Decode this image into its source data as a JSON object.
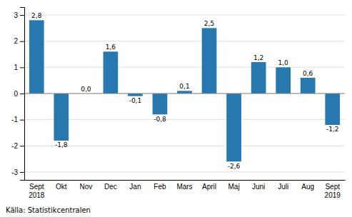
{
  "chart_data": {
    "type": "bar",
    "categories": [
      "Sept\n2018",
      "Okt",
      "Nov",
      "Dec",
      "Jan",
      "Feb",
      "Mars",
      "April",
      "Maj",
      "Juni",
      "Juli",
      "Aug",
      "Sept\n2019"
    ],
    "values": [
      2.8,
      -1.8,
      0.0,
      1.6,
      -0.1,
      -0.8,
      0.1,
      2.5,
      -2.6,
      1.2,
      1.0,
      0.6,
      -1.2
    ],
    "value_labels": [
      "2,8",
      "-1,8",
      "0,0",
      "1,6",
      "-0,1",
      "-0,8",
      "0,1",
      "2,5",
      "-2,6",
      "1,2",
      "1,0",
      "0,6",
      "-1,2"
    ],
    "color": "#2878b0",
    "ylim": [
      -3.3,
      3.3
    ],
    "yticks": [
      -3,
      -2,
      -1,
      0,
      1,
      2,
      3
    ],
    "grid": true,
    "data_labels": true,
    "annotations": [
      "Källa: Statistikcentralen"
    ]
  }
}
